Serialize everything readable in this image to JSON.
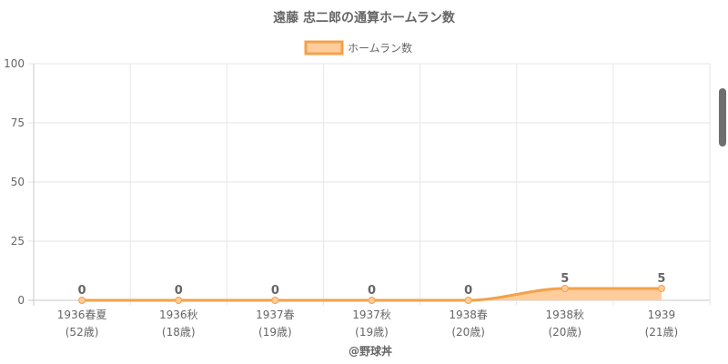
{
  "chart_data": {
    "type": "area",
    "title": "遠藤 忠二郎の通算ホームラン数",
    "legend": {
      "label": "ホームラン数",
      "position": "top-center"
    },
    "categories": [
      [
        "1936春夏",
        "(52歳)"
      ],
      [
        "1936秋",
        "(18歳)"
      ],
      [
        "1937春",
        "(19歳)"
      ],
      [
        "1937秋",
        "(19歳)"
      ],
      [
        "1938春",
        "(20歳)"
      ],
      [
        "1938秋",
        "(20歳)"
      ],
      [
        "1939",
        "(21歳)"
      ]
    ],
    "series": [
      {
        "name": "ホームラン数",
        "values": [
          0,
          0,
          0,
          0,
          0,
          5,
          5
        ]
      }
    ],
    "ylim": [
      0,
      100
    ],
    "yticks": [
      0,
      25,
      50,
      75,
      100
    ],
    "grid": true,
    "xlabel": "@野球丼",
    "colors": {
      "line": "#f4a14a",
      "fill": "#ffcd9c",
      "grid": "#e6e6e6",
      "axis": "#c8c8c8",
      "text": "#666666"
    }
  }
}
